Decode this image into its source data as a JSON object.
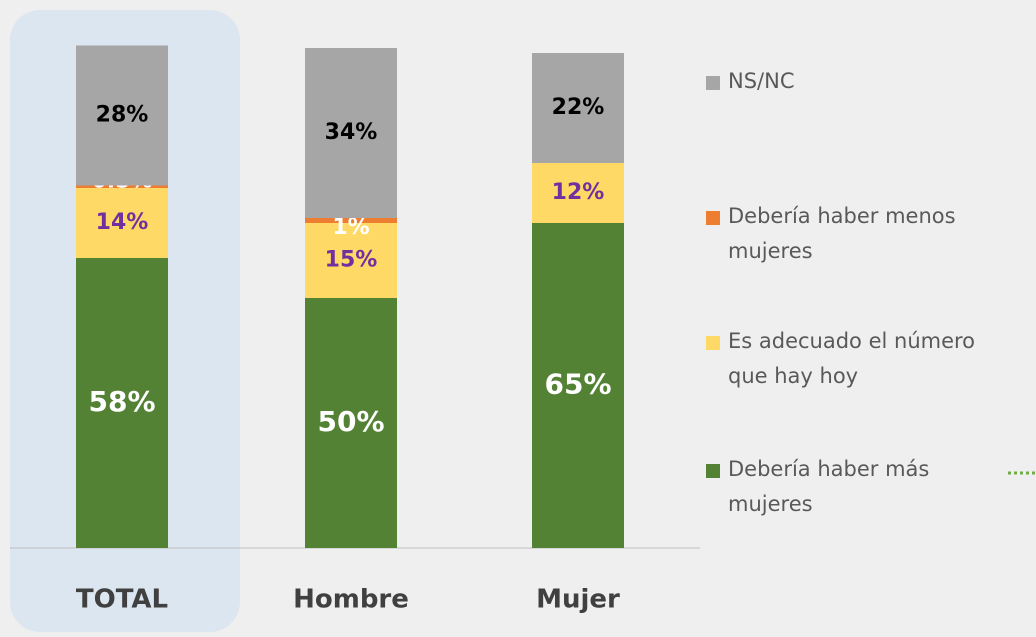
{
  "chart_data": {
    "type": "stacked_bar",
    "categories": [
      "TOTAL",
      "Hombre",
      "Mujer"
    ],
    "ylim": [
      0,
      100
    ],
    "series": [
      {
        "name": "Debería haber más mujeres",
        "color": "#548235",
        "values": [
          58,
          50,
          65
        ]
      },
      {
        "name": "Es adecuado el número que hay hoy",
        "color": "#ffd966",
        "values": [
          14,
          15,
          12
        ]
      },
      {
        "name": "Debería haber menos mujeres",
        "color": "#ed7d31",
        "values": [
          0.5,
          1,
          null
        ]
      },
      {
        "name": "NS/NC",
        "color": "#a6a6a6",
        "values": [
          28,
          34,
          22
        ]
      }
    ],
    "highlight_category": "TOTAL"
  }
}
